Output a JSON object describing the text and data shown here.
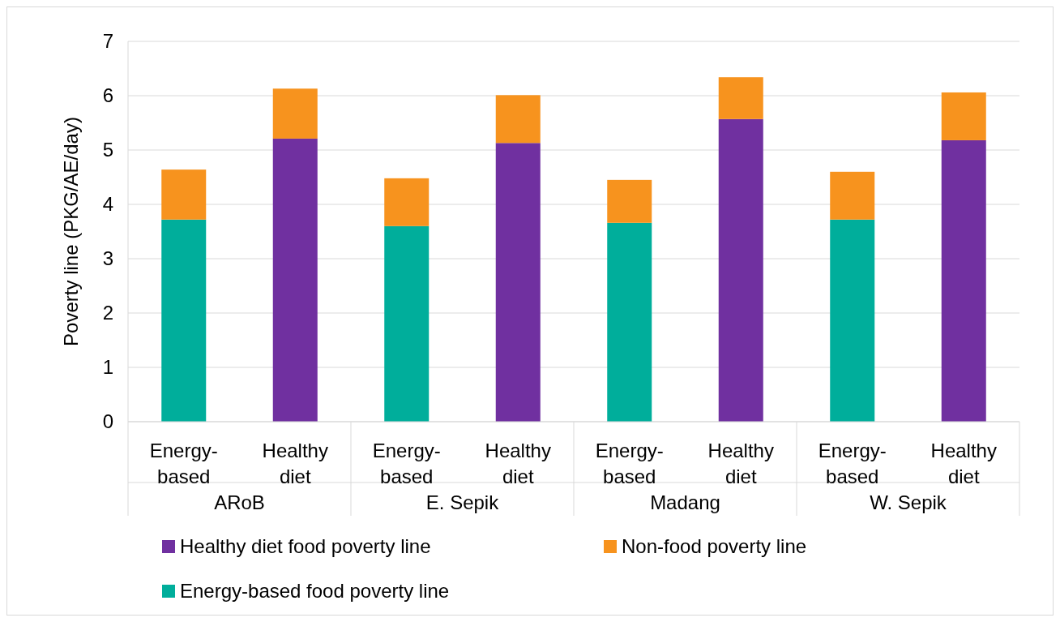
{
  "chart_data": {
    "type": "bar",
    "ylabel": "Poverty line (PKG/AE/day)",
    "categories": [
      "Energy-\nbased",
      "Healthy\ndiet",
      "Energy-\nbased",
      "Healthy\ndiet",
      "Energy-\nbased",
      "Healthy\ndiet",
      "Energy-\nbased",
      "Healthy\ndiet"
    ],
    "annotations": [
      "ARoB",
      "E. Sepik",
      "Madang",
      "W. Sepik"
    ],
    "stacked": true,
    "ylim": [
      0,
      7
    ],
    "yticks": [
      0,
      1,
      2,
      3,
      4,
      5,
      6,
      7
    ],
    "grid": "y",
    "legend": "bottom",
    "series": [
      {
        "name": "Energy-based food poverty line",
        "color": "#00ae9b",
        "values": [
          3.72,
          null,
          3.6,
          null,
          3.66,
          null,
          3.72,
          null
        ]
      },
      {
        "name": "Healthy diet food poverty line",
        "color": "#7030a0",
        "values": [
          null,
          5.21,
          null,
          5.13,
          null,
          5.57,
          null,
          5.18
        ]
      },
      {
        "name": "Non-food poverty line",
        "color": "#f7931e",
        "values": [
          0.92,
          0.92,
          0.88,
          0.88,
          0.79,
          0.77,
          0.88,
          0.88
        ]
      }
    ]
  }
}
